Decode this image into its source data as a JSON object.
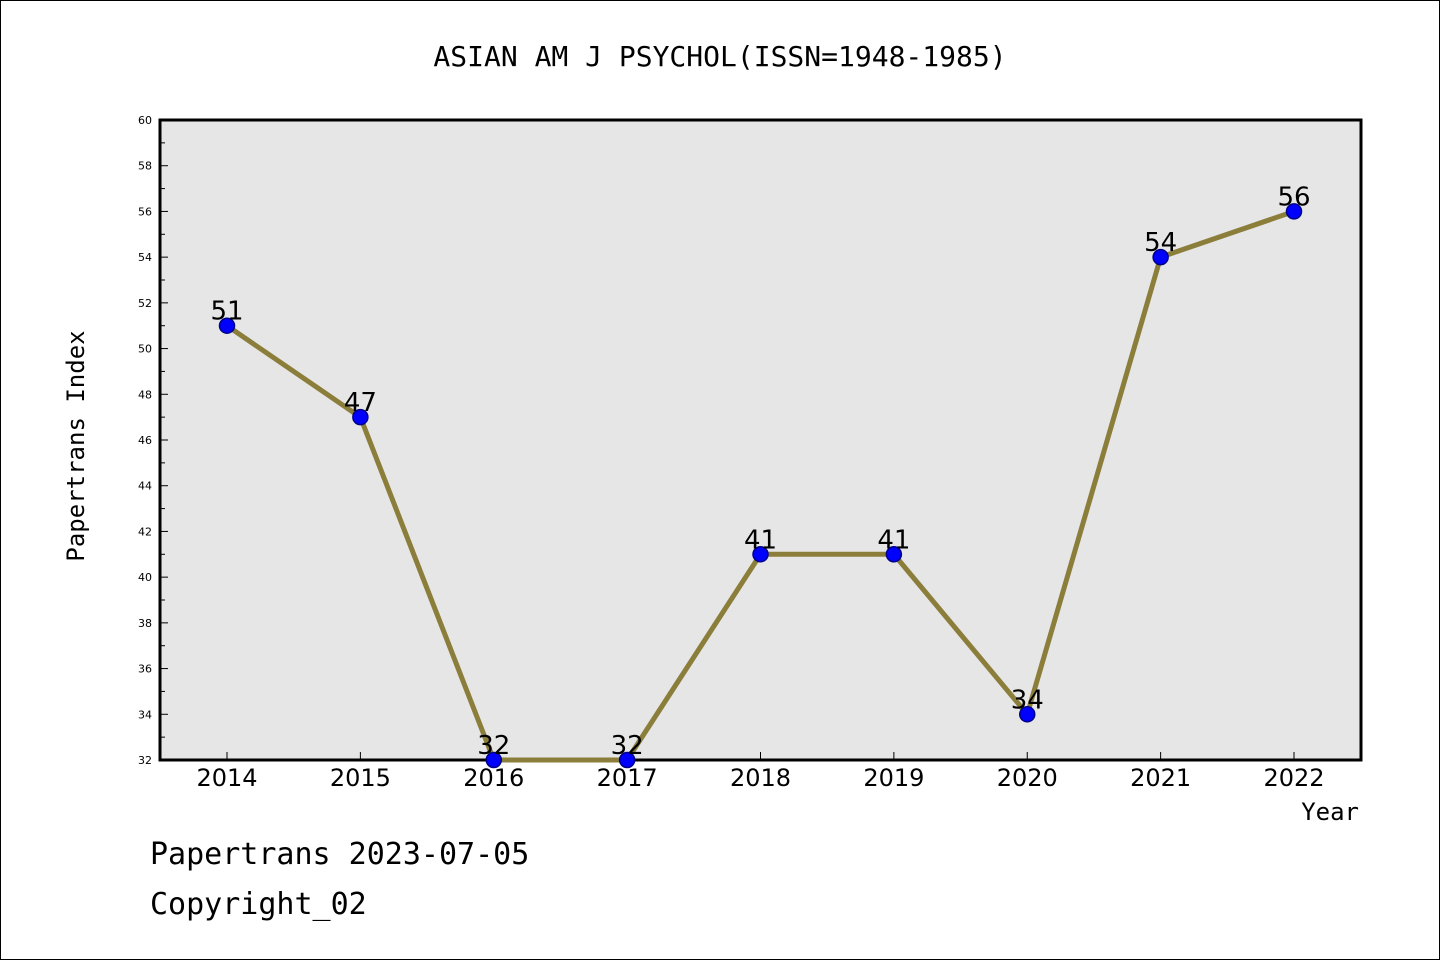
{
  "footer": {
    "line1": "Papertrans 2023-07-05",
    "line2": "Copyright_02"
  },
  "chart_data": {
    "type": "line",
    "title": "ASIAN AM J PSYCHOL(ISSN=1948-1985)",
    "xlabel": "Year",
    "ylabel": "Papertrans Index",
    "categories": [
      "2014",
      "2015",
      "2016",
      "2017",
      "2018",
      "2019",
      "2020",
      "2021",
      "2022"
    ],
    "values": [
      51,
      47,
      32,
      32,
      41,
      41,
      34,
      54,
      56
    ],
    "ylim": [
      32,
      60
    ],
    "yticks": [
      32,
      34,
      36,
      38,
      40,
      42,
      44,
      46,
      48,
      50,
      52,
      54,
      56,
      58,
      60
    ],
    "grid": false,
    "legend": "none",
    "colors": {
      "line": "#8b7d3a",
      "marker": "#0000ff",
      "marker_edge": "#00008b",
      "plot_background": "#e6e6e6",
      "frame": "#000000"
    }
  }
}
